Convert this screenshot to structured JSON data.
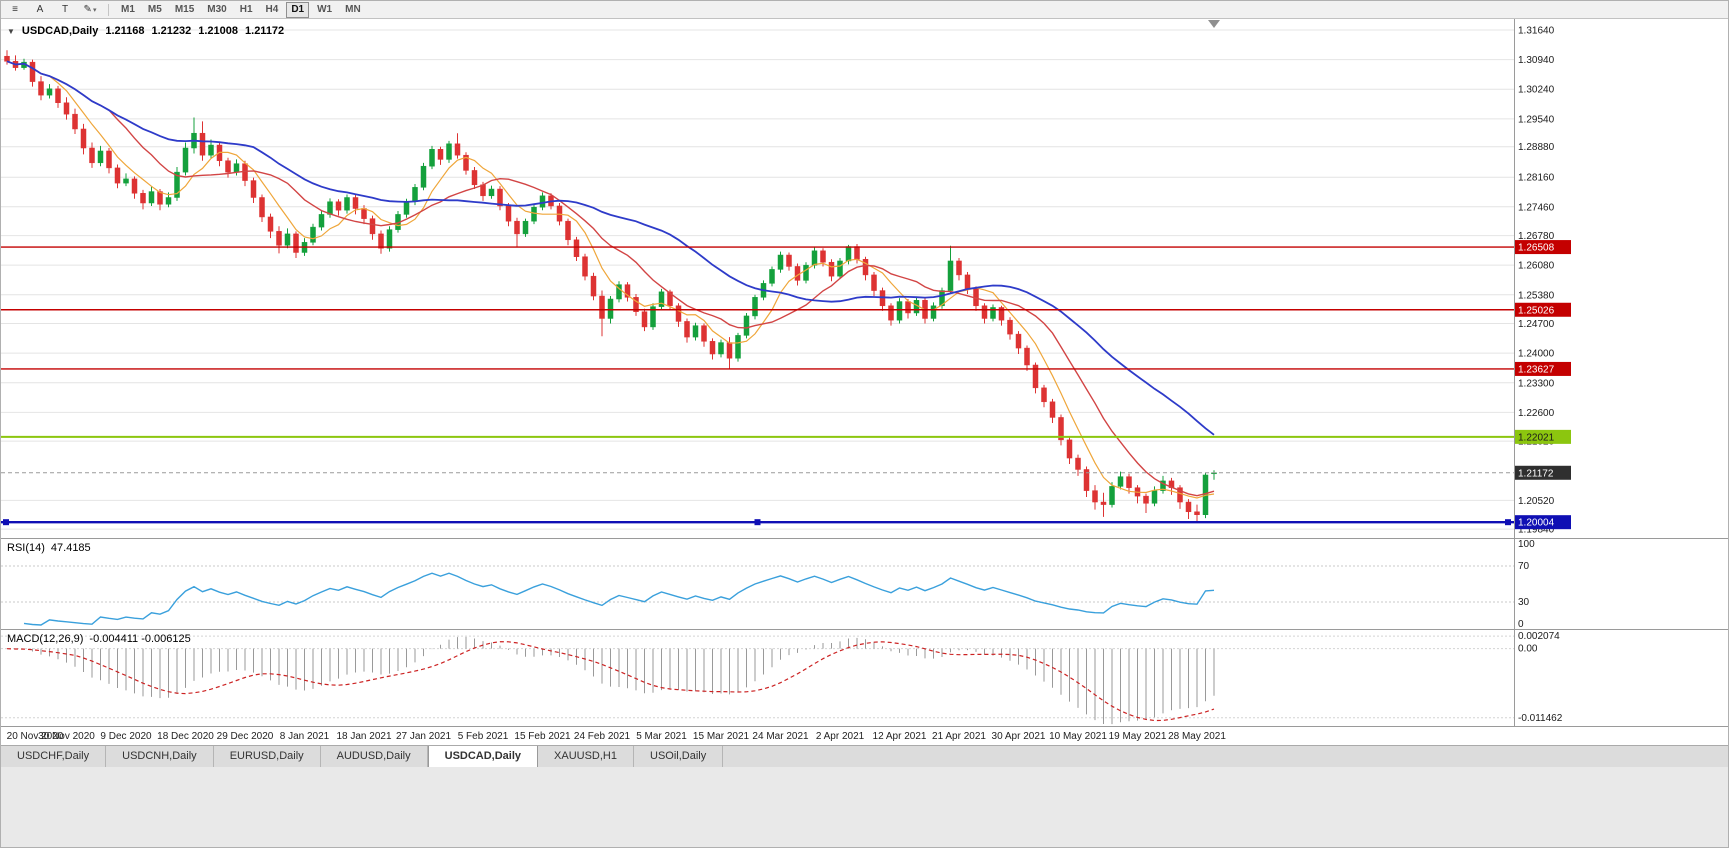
{
  "icons": {
    "symbol_dropdown": "▼",
    "shift_marker": "triangle-down"
  },
  "toolbar": {
    "tools": [
      {
        "name": "chart-menu",
        "glyph": "≡"
      },
      {
        "name": "cursor",
        "glyph": "A"
      },
      {
        "name": "text",
        "glyph": "T"
      },
      {
        "name": "draw",
        "glyph": "✎",
        "caret": "▾"
      }
    ],
    "timeframes": [
      "M1",
      "M5",
      "M15",
      "M30",
      "H1",
      "H4",
      "D1",
      "W1",
      "MN"
    ],
    "active_timeframe": "D1"
  },
  "chart_header": {
    "symbol_period": "USDCAD,Daily",
    "open": "1.21168",
    "high": "1.21232",
    "low": "1.21008",
    "close": "1.21172"
  },
  "indicators": {
    "rsi": {
      "label": "RSI(14)",
      "value": "47.4185",
      "axis_labels": [
        "100",
        "70",
        "30",
        "0"
      ],
      "levels": [
        70,
        30
      ],
      "color": "#3aa0dc"
    },
    "macd": {
      "label": "MACD(12,26,9)",
      "value": "-0.004411 -0.006125",
      "axis_labels": [
        "0.002074",
        "0.00",
        "-0.011462"
      ],
      "color_hist": "#9a9a9a",
      "color_signal": "#cc2222"
    }
  },
  "tabs": {
    "items": [
      {
        "label": "USDCHF,Daily",
        "active": false
      },
      {
        "label": "USDCNH,Daily",
        "active": false
      },
      {
        "label": "EURUSD,Daily",
        "active": false
      },
      {
        "label": "AUDUSD,Daily",
        "active": false
      },
      {
        "label": "USDCAD,Daily",
        "active": true
      },
      {
        "label": "XAUUSD,H1",
        "active": false
      },
      {
        "label": "USOil,Daily",
        "active": false
      }
    ]
  },
  "chart_data": {
    "type": "candlestick",
    "symbol": "USDCAD",
    "timeframe": "Daily",
    "label_every_n_candles": 7,
    "x_labels": [
      "20 Nov 2020",
      "30 Nov 2020",
      "9 Dec 2020",
      "18 Dec 2020",
      "29 Dec 2020",
      "8 Jan 2021",
      "18 Jan 2021",
      "27 Jan 2021",
      "5 Feb 2021",
      "15 Feb 2021",
      "24 Feb 2021",
      "5 Mar 2021",
      "15 Mar 2021",
      "24 Mar 2021",
      "2 Apr 2021",
      "12 Apr 2021",
      "21 Apr 2021",
      "30 Apr 2021",
      "10 May 2021",
      "19 May 2021",
      "28 May 2021"
    ],
    "price_scale": {
      "max": 1.319,
      "min": 1.1963
    },
    "price_axis_labels": [
      "1.31640",
      "1.30940",
      "1.30240",
      "1.29540",
      "1.28880",
      "1.28160",
      "1.27460",
      "1.26780",
      "1.26080",
      "1.25380",
      "1.24700",
      "1.24000",
      "1.23300",
      "1.22600",
      "1.21920",
      "1.20520",
      "1.19840"
    ],
    "colors": {
      "up": "#14a03c",
      "down": "#dd3333",
      "grid": "#e4e4e4"
    },
    "moving_averages": [
      {
        "period": 6,
        "color": "#efa63a",
        "width": 1.2
      },
      {
        "period": 13,
        "color": "#d24545",
        "width": 1.4
      },
      {
        "period": 30,
        "color": "#2e3bc9",
        "width": 1.8
      }
    ],
    "horizontal_lines": [
      {
        "price": 1.26508,
        "label": "1.26508",
        "color": "#c40000",
        "width": 1.4,
        "selected": false,
        "text_color": "#ffffff"
      },
      {
        "price": 1.25026,
        "label": "1.25026",
        "color": "#c40000",
        "width": 1.4,
        "selected": false,
        "text_color": "#ffffff"
      },
      {
        "price": 1.23627,
        "label": "1.23627",
        "color": "#c40000",
        "width": 1.4,
        "selected": false,
        "text_color": "#ffffff"
      },
      {
        "price": 1.22021,
        "label": "1.22021",
        "color": "#8cc60f",
        "width": 2,
        "selected": false,
        "text_color": "#1a1a1a"
      },
      {
        "price": 1.20004,
        "label": "1.20004",
        "color": "#0f0fb4",
        "width": 2.4,
        "selected": true,
        "text_color": "#ffffff"
      }
    ],
    "current_price": {
      "value": 1.21172,
      "label": "1.21172",
      "badge_color": "#2f2f2f",
      "line_color": "#9a9a9a"
    },
    "candles": [
      [
        1.3102,
        1.3116,
        1.3082,
        1.309
      ],
      [
        1.309,
        1.3104,
        1.3068,
        1.3075
      ],
      [
        1.3075,
        1.3096,
        1.307,
        1.3088
      ],
      [
        1.3088,
        1.3094,
        1.303,
        1.3042
      ],
      [
        1.3042,
        1.3055,
        1.2998,
        1.301
      ],
      [
        1.301,
        1.3036,
        1.3002,
        1.3025
      ],
      [
        1.3025,
        1.3032,
        1.298,
        1.2992
      ],
      [
        1.2992,
        1.3005,
        1.2952,
        1.2965
      ],
      [
        1.2965,
        1.2978,
        1.2918,
        1.293
      ],
      [
        1.293,
        1.2942,
        1.287,
        1.2885
      ],
      [
        1.2885,
        1.2898,
        1.2838,
        1.285
      ],
      [
        1.285,
        1.289,
        1.2842,
        1.2878
      ],
      [
        1.2878,
        1.2885,
        1.2825,
        1.2838
      ],
      [
        1.2838,
        1.2846,
        1.279,
        1.2802
      ],
      [
        1.2802,
        1.2825,
        1.2795,
        1.2812
      ],
      [
        1.2812,
        1.2818,
        1.2765,
        1.2778
      ],
      [
        1.2778,
        1.2786,
        1.274,
        1.2755
      ],
      [
        1.2755,
        1.2795,
        1.2748,
        1.2782
      ],
      [
        1.2782,
        1.2788,
        1.2738,
        1.2752
      ],
      [
        1.2752,
        1.278,
        1.2745,
        1.2768
      ],
      [
        1.2768,
        1.284,
        1.276,
        1.2828
      ],
      [
        1.2828,
        1.2898,
        1.282,
        1.2885
      ],
      [
        1.2885,
        1.2957,
        1.2872,
        1.292
      ],
      [
        1.292,
        1.2948,
        1.2855,
        1.2868
      ],
      [
        1.2868,
        1.2905,
        1.286,
        1.2892
      ],
      [
        1.2892,
        1.2898,
        1.2842,
        1.2855
      ],
      [
        1.2855,
        1.2862,
        1.2815,
        1.2828
      ],
      [
        1.2828,
        1.2858,
        1.282,
        1.2848
      ],
      [
        1.2848,
        1.2855,
        1.2795,
        1.2808
      ],
      [
        1.2808,
        1.2815,
        1.2755,
        1.2768
      ],
      [
        1.2768,
        1.2775,
        1.271,
        1.2722
      ],
      [
        1.2722,
        1.273,
        1.2672,
        1.2688
      ],
      [
        1.2688,
        1.27,
        1.2636,
        1.2655
      ],
      [
        1.2655,
        1.2695,
        1.2648,
        1.2682
      ],
      [
        1.2682,
        1.2688,
        1.2625,
        1.2638
      ],
      [
        1.2638,
        1.2672,
        1.263,
        1.2662
      ],
      [
        1.2662,
        1.2706,
        1.2655,
        1.2698
      ],
      [
        1.2698,
        1.2738,
        1.269,
        1.2728
      ],
      [
        1.2728,
        1.2766,
        1.272,
        1.2758
      ],
      [
        1.2758,
        1.2764,
        1.2725,
        1.2738
      ],
      [
        1.2738,
        1.2775,
        1.273,
        1.2768
      ],
      [
        1.2768,
        1.2774,
        1.2728,
        1.2742
      ],
      [
        1.2742,
        1.275,
        1.2705,
        1.2718
      ],
      [
        1.2718,
        1.2725,
        1.2668,
        1.2682
      ],
      [
        1.2682,
        1.269,
        1.2635,
        1.2648
      ],
      [
        1.2648,
        1.27,
        1.264,
        1.2692
      ],
      [
        1.2692,
        1.2736,
        1.2685,
        1.2728
      ],
      [
        1.2728,
        1.2765,
        1.272,
        1.2758
      ],
      [
        1.2758,
        1.28,
        1.275,
        1.2792
      ],
      [
        1.2792,
        1.285,
        1.2785,
        1.2842
      ],
      [
        1.2842,
        1.289,
        1.2835,
        1.2882
      ],
      [
        1.2882,
        1.2888,
        1.2845,
        1.2858
      ],
      [
        1.2858,
        1.2902,
        1.285,
        1.2895
      ],
      [
        1.2895,
        1.292,
        1.286,
        1.2868
      ],
      [
        1.2868,
        1.2875,
        1.2822,
        1.2832
      ],
      [
        1.2832,
        1.284,
        1.2788,
        1.2798
      ],
      [
        1.2798,
        1.2805,
        1.276,
        1.2772
      ],
      [
        1.2772,
        1.2796,
        1.2765,
        1.2788
      ],
      [
        1.2788,
        1.2795,
        1.2738,
        1.2748
      ],
      [
        1.2748,
        1.2755,
        1.27,
        1.2712
      ],
      [
        1.2712,
        1.272,
        1.2652,
        1.2682
      ],
      [
        1.2682,
        1.2718,
        1.2675,
        1.2712
      ],
      [
        1.2712,
        1.2752,
        1.2705,
        1.2745
      ],
      [
        1.2745,
        1.278,
        1.2738,
        1.2772
      ],
      [
        1.2772,
        1.2778,
        1.274,
        1.2748
      ],
      [
        1.2748,
        1.2755,
        1.2702,
        1.2712
      ],
      [
        1.2712,
        1.2718,
        1.2655,
        1.2668
      ],
      [
        1.2668,
        1.2675,
        1.2618,
        1.2628
      ],
      [
        1.2628,
        1.2635,
        1.2572,
        1.2582
      ],
      [
        1.2582,
        1.259,
        1.2525,
        1.2535
      ],
      [
        1.2535,
        1.2548,
        1.244,
        1.2482
      ],
      [
        1.2482,
        1.2535,
        1.247,
        1.2528
      ],
      [
        1.2528,
        1.257,
        1.252,
        1.2562
      ],
      [
        1.2562,
        1.2568,
        1.2522,
        1.2532
      ],
      [
        1.2532,
        1.254,
        1.2488,
        1.2498
      ],
      [
        1.2498,
        1.2505,
        1.2452,
        1.2462
      ],
      [
        1.2462,
        1.2518,
        1.2455,
        1.251
      ],
      [
        1.251,
        1.2552,
        1.2502,
        1.2545
      ],
      [
        1.2545,
        1.255,
        1.2502,
        1.2512
      ],
      [
        1.2512,
        1.2518,
        1.2462,
        1.2475
      ],
      [
        1.2475,
        1.2482,
        1.2425,
        1.2438
      ],
      [
        1.2438,
        1.2472,
        1.243,
        1.2465
      ],
      [
        1.2465,
        1.247,
        1.2415,
        1.2428
      ],
      [
        1.2428,
        1.2435,
        1.2385,
        1.2398
      ],
      [
        1.2398,
        1.2432,
        1.239,
        1.2425
      ],
      [
        1.2425,
        1.2438,
        1.2363,
        1.2388
      ],
      [
        1.2388,
        1.2448,
        1.238,
        1.2442
      ],
      [
        1.2442,
        1.2495,
        1.2435,
        1.2488
      ],
      [
        1.2488,
        1.2538,
        1.248,
        1.2532
      ],
      [
        1.2532,
        1.2572,
        1.2525,
        1.2565
      ],
      [
        1.2565,
        1.2605,
        1.2558,
        1.2598
      ],
      [
        1.2598,
        1.264,
        1.259,
        1.2632
      ],
      [
        1.2632,
        1.2638,
        1.2595,
        1.2605
      ],
      [
        1.2605,
        1.2612,
        1.256,
        1.2572
      ],
      [
        1.2572,
        1.2615,
        1.2565,
        1.2608
      ],
      [
        1.2608,
        1.265,
        1.26,
        1.2642
      ],
      [
        1.2642,
        1.2648,
        1.2605,
        1.2615
      ],
      [
        1.2615,
        1.2622,
        1.257,
        1.2582
      ],
      [
        1.2582,
        1.2625,
        1.2575,
        1.2618
      ],
      [
        1.2618,
        1.2656,
        1.261,
        1.2652
      ],
      [
        1.2652,
        1.2658,
        1.2612,
        1.2622
      ],
      [
        1.2622,
        1.2628,
        1.2572,
        1.2585
      ],
      [
        1.2585,
        1.2592,
        1.2535,
        1.2548
      ],
      [
        1.2548,
        1.2555,
        1.25,
        1.2512
      ],
      [
        1.2512,
        1.2518,
        1.2465,
        1.2478
      ],
      [
        1.2478,
        1.253,
        1.247,
        1.2522
      ],
      [
        1.2522,
        1.2528,
        1.2482,
        1.2495
      ],
      [
        1.2495,
        1.2532,
        1.2488,
        1.2525
      ],
      [
        1.2525,
        1.253,
        1.247,
        1.2482
      ],
      [
        1.2482,
        1.252,
        1.2475,
        1.2512
      ],
      [
        1.2512,
        1.2555,
        1.2505,
        1.2548
      ],
      [
        1.2548,
        1.2654,
        1.254,
        1.2618
      ],
      [
        1.2618,
        1.2625,
        1.2572,
        1.2585
      ],
      [
        1.2585,
        1.2592,
        1.254,
        1.2552
      ],
      [
        1.2552,
        1.2558,
        1.25,
        1.2512
      ],
      [
        1.2512,
        1.2518,
        1.247,
        1.2482
      ],
      [
        1.2482,
        1.2515,
        1.2475,
        1.2508
      ],
      [
        1.2508,
        1.2512,
        1.2465,
        1.2478
      ],
      [
        1.2478,
        1.2485,
        1.2432,
        1.2445
      ],
      [
        1.2445,
        1.2452,
        1.2398,
        1.2412
      ],
      [
        1.2412,
        1.2418,
        1.2358,
        1.2372
      ],
      [
        1.2372,
        1.2378,
        1.2305,
        1.2318
      ],
      [
        1.2318,
        1.2325,
        1.2272,
        1.2285
      ],
      [
        1.2285,
        1.2292,
        1.2235,
        1.2248
      ],
      [
        1.2248,
        1.2255,
        1.2182,
        1.2195
      ],
      [
        1.2195,
        1.2202,
        1.2138,
        1.2152
      ],
      [
        1.2152,
        1.216,
        1.211,
        1.2125
      ],
      [
        1.2125,
        1.2132,
        1.206,
        1.2075
      ],
      [
        1.2075,
        1.2088,
        1.203,
        1.2048
      ],
      [
        1.2048,
        1.207,
        1.2013,
        1.2042
      ],
      [
        1.2042,
        1.2095,
        1.2035,
        1.2085
      ],
      [
        1.2085,
        1.212,
        1.2078,
        1.2108
      ],
      [
        1.2108,
        1.2115,
        1.2068,
        1.2082
      ],
      [
        1.2082,
        1.2088,
        1.2045,
        1.2062
      ],
      [
        1.2062,
        1.2068,
        1.2022,
        1.2045
      ],
      [
        1.2045,
        1.2085,
        1.2038,
        1.2075
      ],
      [
        1.2075,
        1.211,
        1.2068,
        1.2098
      ],
      [
        1.2098,
        1.2105,
        1.2065,
        1.2082
      ],
      [
        1.2082,
        1.2088,
        1.2032,
        1.2048
      ],
      [
        1.2048,
        1.2055,
        1.2008,
        1.2025
      ],
      [
        1.2025,
        1.2042,
        1.2002,
        1.2018
      ],
      [
        1.2018,
        1.2118,
        1.201,
        1.2112
      ],
      [
        1.21168,
        1.21232,
        1.21008,
        1.21172
      ]
    ]
  }
}
